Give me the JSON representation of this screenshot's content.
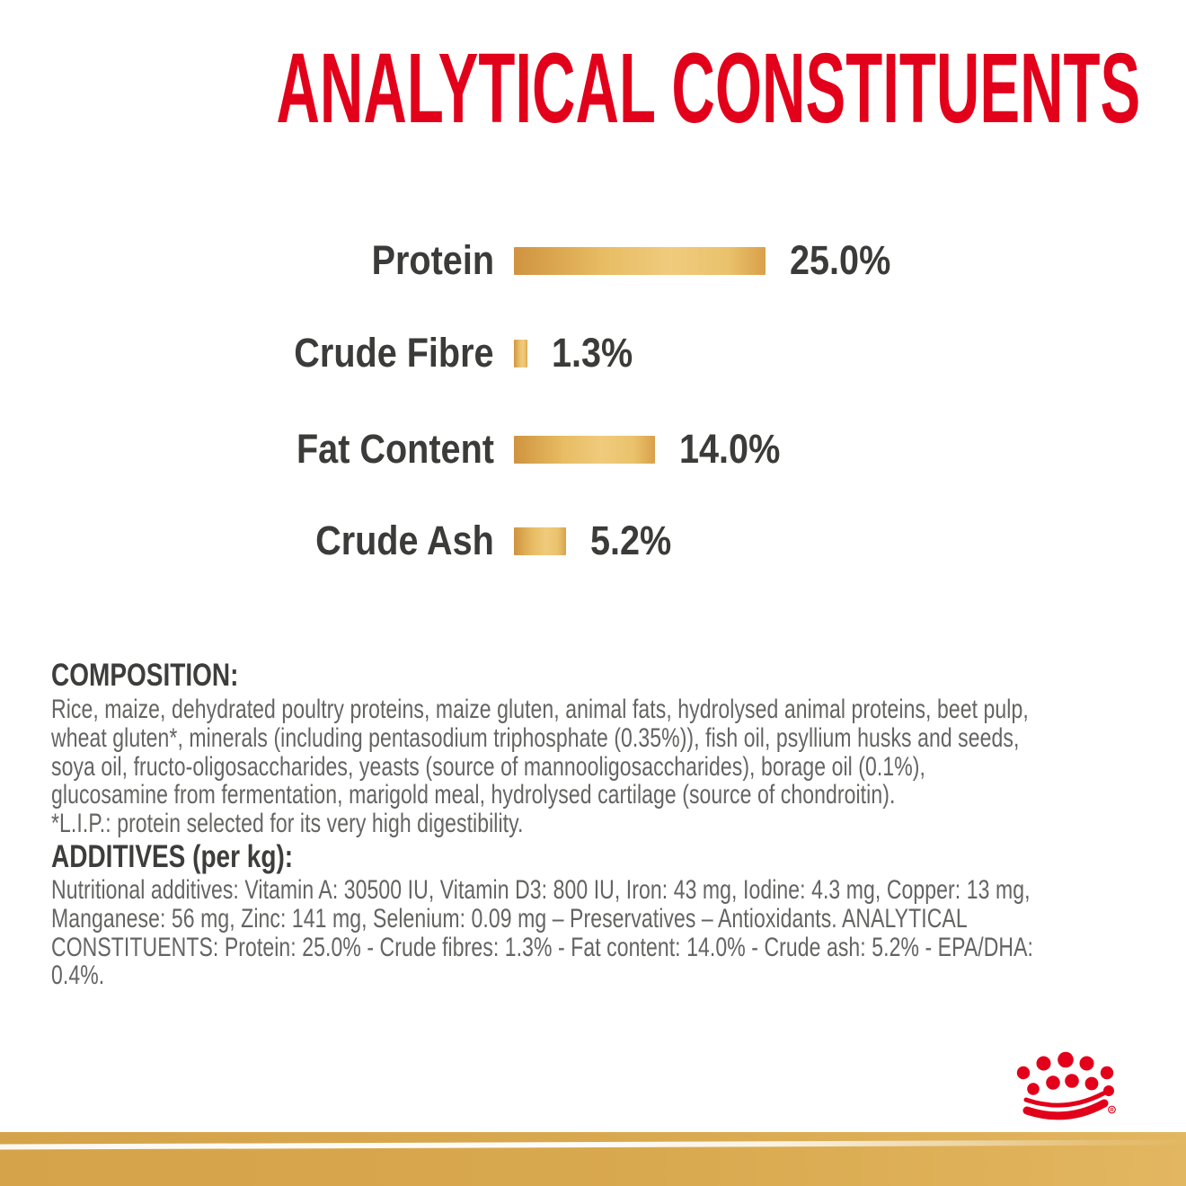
{
  "title": {
    "text": "ANALYTICAL CONSTITUENTS"
  },
  "chart_data": {
    "type": "bar",
    "orientation": "horizontal",
    "title": "ANALYTICAL CONSTITUENTS",
    "categories": [
      "Protein",
      "Crude Fibre",
      "Fat Content",
      "Crude Ash"
    ],
    "values": [
      25.0,
      1.3,
      14.0,
      5.2
    ],
    "value_labels": [
      "25.0%",
      "1.3%",
      "14.0%",
      "5.2%"
    ],
    "unit": "percent",
    "xlim": [
      0,
      25
    ],
    "grid": false,
    "legend": false,
    "bar_color": "#e3b45c",
    "label_color": "#3b3b3a"
  },
  "composition": {
    "heading": "COMPOSITION:",
    "lines": [
      "Rice, maize, dehydrated poultry proteins, maize gluten, animal fats, hydrolysed animal proteins, beet pulp,",
      "wheat gluten*, minerals (including pentasodium triphosphate (0.35%)), fish oil, psyllium husks and seeds,",
      "soya oil, fructo-oligosaccharides, yeasts (source of mannooligosaccharides), borage oil (0.1%),",
      "glucosamine from fermentation, marigold meal, hydrolysed cartilage (source of chondroitin).",
      "*L.I.P.: protein selected for its very high digestibility."
    ]
  },
  "additives": {
    "heading": "ADDITIVES (per kg):",
    "lines": [
      "Nutritional additives: Vitamin A: 30500 IU, Vitamin D3: 800 IU, Iron: 43 mg, Iodine: 4.3 mg, Copper: 13 mg,",
      "Manganese: 56 mg, Zinc: 141 mg, Selenium: 0.09 mg – Preservatives – Antioxidants. ANALYTICAL",
      "CONSTITUENTS: Protein: 25.0% - Crude fibres: 1.3% - Fat content: 14.0% - Crude ash: 5.2% - EPA/DHA:",
      "0.4%."
    ]
  },
  "footer": {
    "logo_name": "royal-canin-crown",
    "registered_mark": "R"
  },
  "colors": {
    "title_red": "#e2001a",
    "crown_red": "#e2001a",
    "heading_dark": "#3d3d3c",
    "body_gray": "#646463",
    "bar_gold": "#e3b45c",
    "band_gold": "#d9a94e"
  }
}
